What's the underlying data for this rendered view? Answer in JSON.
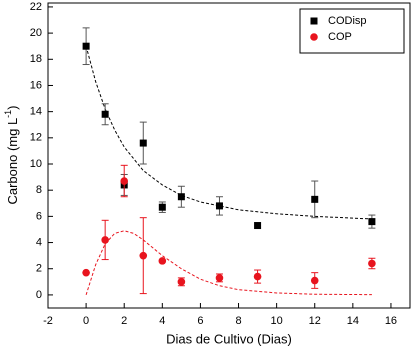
{
  "chart_data": {
    "type": "scatter",
    "x_label": "Dias de Cultivo (Dias)",
    "y_label": [
      "Carbono (mg L",
      "-1",
      ")"
    ],
    "xlim": [
      -2,
      17
    ],
    "xticks": [
      -2,
      0,
      2,
      4,
      6,
      8,
      10,
      12,
      14,
      16
    ],
    "ylim": [
      -1,
      22.3
    ],
    "yticks": [
      0,
      2,
      4,
      6,
      8,
      10,
      12,
      14,
      16,
      18,
      20,
      22
    ],
    "legend": "upper right",
    "series": [
      {
        "name": "CODisp",
        "color": "#000000",
        "marker": "square",
        "x": [
          0,
          1,
          2,
          3,
          4,
          5,
          7,
          9,
          12,
          15
        ],
        "values": [
          19.0,
          13.8,
          8.4,
          11.6,
          6.7,
          7.5,
          6.8,
          5.3,
          7.3,
          5.6
        ],
        "errors": [
          1.4,
          0.8,
          0.8,
          1.6,
          0.4,
          0.8,
          0.7,
          null,
          1.4,
          0.5
        ]
      },
      {
        "name": "COP",
        "color": "#e8141e",
        "marker": "circle",
        "x": [
          0,
          1,
          2,
          3,
          4,
          5,
          7,
          9,
          12,
          15
        ],
        "values": [
          1.7,
          4.2,
          8.7,
          3.0,
          2.6,
          1.0,
          1.3,
          1.4,
          1.1,
          2.4
        ],
        "errors": [
          null,
          1.5,
          1.2,
          2.9,
          null,
          0.3,
          0.3,
          0.5,
          0.6,
          0.4
        ]
      }
    ],
    "fits": [
      {
        "color": "#000000",
        "x": [
          0,
          0.5,
          1,
          1.5,
          2,
          3,
          4,
          5,
          6,
          8,
          10,
          12,
          15
        ],
        "values": [
          19,
          16.3,
          14.2,
          12.6,
          11.3,
          9.5,
          8.4,
          7.6,
          7.1,
          6.5,
          6.2,
          6.0,
          5.8
        ]
      },
      {
        "color": "#e8141e",
        "x": [
          0,
          0.5,
          1,
          1.5,
          2,
          2.5,
          3,
          4,
          5,
          6,
          7,
          8,
          10,
          12,
          15
        ],
        "values": [
          0,
          2.3,
          3.9,
          4.7,
          4.9,
          4.7,
          4.2,
          3.0,
          2.0,
          1.2,
          0.7,
          0.4,
          0.15,
          0.05,
          0.02
        ]
      }
    ]
  }
}
